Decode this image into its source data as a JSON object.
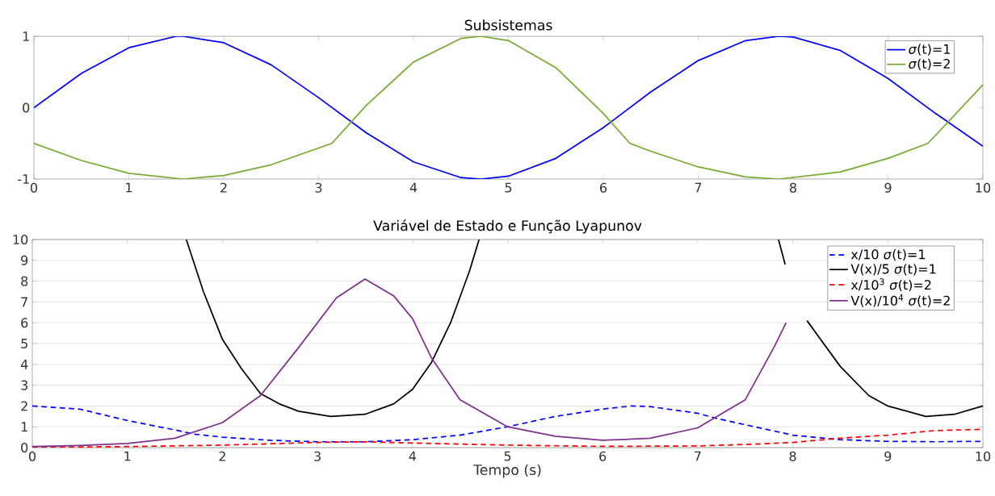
{
  "chart_data": [
    {
      "type": "line",
      "title": "Subsistemas",
      "xlim": [
        0,
        10
      ],
      "ylim": [
        -1,
        1
      ],
      "xticks": [
        0,
        1,
        2,
        3,
        4,
        5,
        6,
        7,
        8,
        9,
        10
      ],
      "yticks": [
        -1,
        0,
        1
      ],
      "grid": false,
      "legend": "top right",
      "marker": "none",
      "series": [
        {
          "name": "*σ*(t)=1",
          "color": "#0000ff",
          "line_style": "solid",
          "x": [
            0,
            0.5,
            1,
            1.5,
            1.57,
            2,
            2.5,
            3,
            3.5,
            4,
            4.5,
            4.71,
            5,
            5.5,
            6,
            6.5,
            7,
            7.5,
            7.85,
            8,
            8.5,
            9,
            9.5,
            10
          ],
          "values": [
            0,
            0.48,
            0.84,
            1.0,
            1.0,
            0.91,
            0.6,
            0.14,
            -0.35,
            -0.76,
            -0.98,
            -1.0,
            -0.96,
            -0.71,
            -0.28,
            0.22,
            0.66,
            0.94,
            1.0,
            0.99,
            0.8,
            0.41,
            -0.08,
            -0.54
          ]
        },
        {
          "name": "*σ*(t)=2",
          "color": "#77ac30",
          "line_style": "solid",
          "x": [
            0,
            0.5,
            1,
            1.57,
            2,
            2.5,
            3.14,
            3.5,
            4,
            4.5,
            4.71,
            5,
            5.5,
            6,
            6.28,
            6.5,
            7,
            7.5,
            7.85,
            8.5,
            9,
            9.42,
            9.5,
            10
          ],
          "values": [
            -0.5,
            -0.74,
            -0.92,
            -1.0,
            -0.95,
            -0.8,
            -0.5,
            0.03,
            0.64,
            0.97,
            1.0,
            0.94,
            0.56,
            -0.08,
            -0.5,
            -0.61,
            -0.83,
            -0.97,
            -1.0,
            -0.9,
            -0.71,
            -0.5,
            -0.39,
            0.32
          ]
        }
      ]
    },
    {
      "type": "line",
      "title": "Variável de Estado e Função Lyapunov",
      "xlabel": "Tempo (s)",
      "xlim": [
        0,
        10
      ],
      "ylim": [
        0,
        10
      ],
      "xticks": [
        0,
        1,
        2,
        3,
        4,
        5,
        6,
        7,
        8,
        9,
        10
      ],
      "yticks": [
        0,
        1,
        2,
        3,
        4,
        5,
        6,
        7,
        8,
        9,
        10
      ],
      "grid": "y",
      "legend": "top right",
      "marker": "none",
      "series": [
        {
          "name": "x/10 *σ*(t)=1",
          "color": "#0000ff",
          "line_style": "dashed",
          "x": [
            0,
            0.5,
            1,
            1.5,
            1.7,
            2,
            2.5,
            3,
            3.5,
            4,
            4.5,
            5,
            5.5,
            6,
            6.3,
            6.5,
            7,
            7.2,
            7.5,
            8,
            8.5,
            9,
            9.5,
            10
          ],
          "values": [
            2.0,
            1.85,
            1.3,
            0.85,
            0.65,
            0.5,
            0.35,
            0.28,
            0.28,
            0.38,
            0.6,
            1.0,
            1.5,
            1.85,
            2.0,
            1.97,
            1.65,
            1.4,
            1.1,
            0.6,
            0.38,
            0.3,
            0.28,
            0.3
          ]
        },
        {
          "name": "V(x)/5 *σ*(t)=1",
          "color": "#000000",
          "line_style": "solid",
          "x": [
            1.62,
            1.8,
            2,
            2.2,
            2.4,
            2.6,
            2.8,
            3.14,
            3.5,
            3.8,
            4,
            4.2,
            4.4,
            4.6,
            4.7,
            6,
            7.85,
            7.92,
            8.0,
            8.15,
            8.5,
            8.8,
            9,
            9.4,
            9.7,
            10
          ],
          "values": [
            10,
            7.5,
            5.2,
            3.8,
            2.6,
            2.1,
            1.75,
            1.5,
            1.6,
            2.1,
            2.8,
            4.1,
            6.0,
            8.5,
            10,
            null,
            10,
            8.8,
            null,
            6.1,
            3.9,
            2.5,
            2.0,
            1.5,
            1.6,
            2.0
          ]
        },
        {
          "name": "x/10$^{3}$ *σ*(t)=2",
          "color": "#ff0000",
          "line_style": "dashed",
          "x": [
            0,
            1,
            2,
            3,
            3.5,
            4,
            5,
            6,
            7,
            7.5,
            8,
            8.5,
            9,
            9.5,
            10
          ],
          "values": [
            0.02,
            0.05,
            0.12,
            0.25,
            0.28,
            0.22,
            0.12,
            0.06,
            0.08,
            0.15,
            0.25,
            0.45,
            0.6,
            0.82,
            0.88
          ]
        },
        {
          "name": "V(x)/10$^{4}$ *σ*(t)=2",
          "color": "#7e2f8e",
          "line_style": "solid",
          "x": [
            0,
            0.5,
            1,
            1.5,
            2,
            2.4,
            2.8,
            3,
            3.2,
            3.5,
            3.8,
            4,
            4.2,
            4.5,
            5,
            5.5,
            6,
            6.5,
            7,
            7.5,
            7.8,
            7.93
          ],
          "values": [
            0.05,
            0.1,
            0.2,
            0.45,
            1.2,
            2.5,
            4.8,
            6.0,
            7.2,
            8.1,
            7.3,
            6.2,
            4.3,
            2.3,
            1.0,
            0.55,
            0.35,
            0.45,
            0.95,
            2.3,
            4.8,
            6.0
          ]
        }
      ]
    }
  ]
}
